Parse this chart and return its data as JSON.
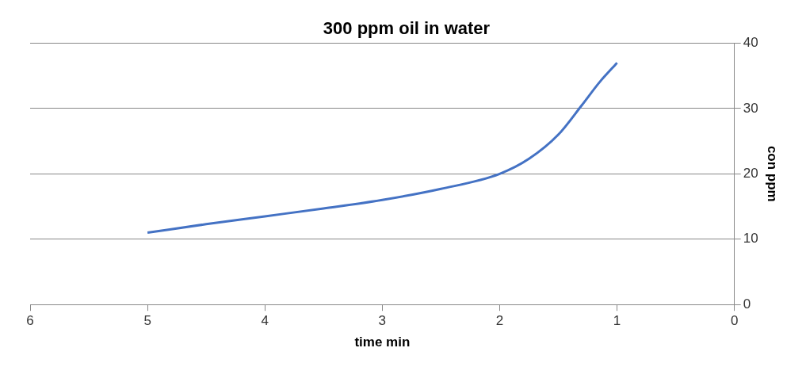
{
  "chart_data": {
    "type": "line",
    "title": "300 ppm oil in water",
    "xlabel": "time min",
    "ylabel": "con ppm",
    "x": [
      5,
      4.5,
      4,
      3.5,
      3,
      2.5,
      2,
      1.75,
      1.5,
      1.3,
      1.15,
      1
    ],
    "series": [
      {
        "color": "#4472c4",
        "values": [
          11,
          12.3,
          13.5,
          14.7,
          16,
          17.7,
          20,
          22.3,
          26,
          30.5,
          34,
          37
        ]
      }
    ],
    "xlim": [
      6,
      0
    ],
    "ylim": [
      0,
      40
    ],
    "xticks": [
      6,
      5,
      4,
      3,
      2,
      1,
      0
    ],
    "yticks": [
      0,
      10,
      20,
      30,
      40
    ],
    "grid": "y",
    "legend": false,
    "marker": "none",
    "line_style": "solid"
  }
}
